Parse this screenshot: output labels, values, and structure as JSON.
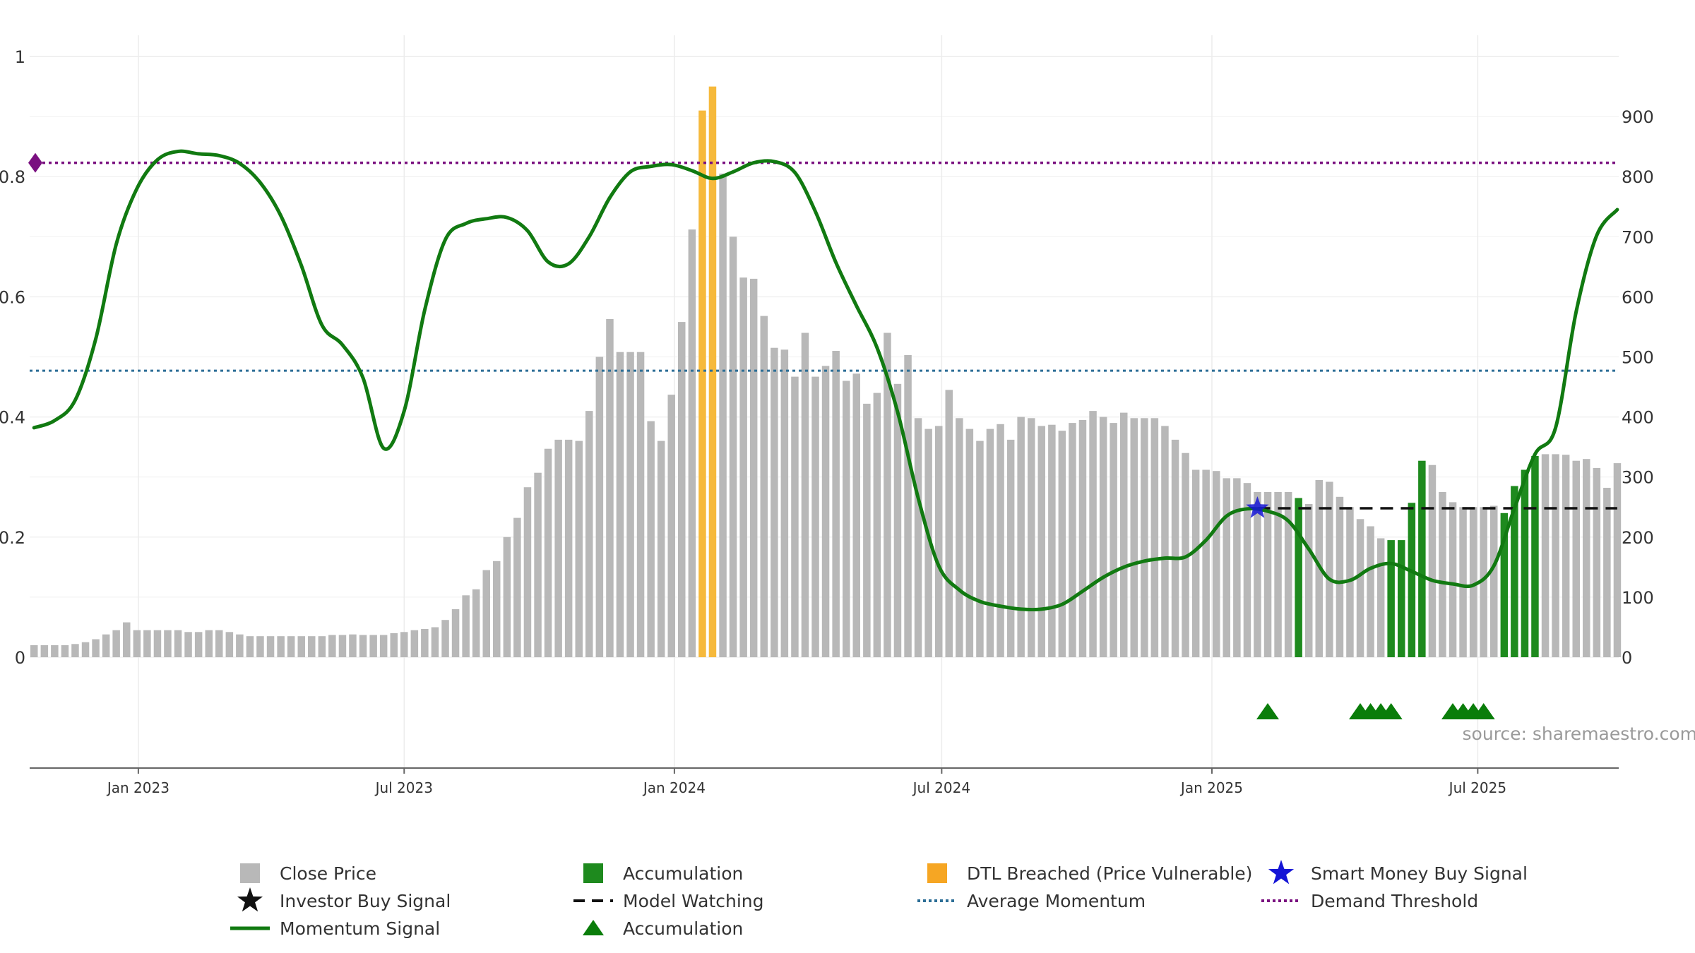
{
  "source_text": "source: sharemaestro.com",
  "chart_data": {
    "type": "bar",
    "title": "",
    "x_tick_labels": [
      "Jan 2023",
      "Jul 2023",
      "Jan 2024",
      "Jul 2024",
      "Jan 2025",
      "Jul 2025"
    ],
    "x_tick_dates": [
      "2023-01-01",
      "2023-07-01",
      "2024-01-01",
      "2024-07-01",
      "2025-01-01",
      "2025-07-01"
    ],
    "x_range": [
      "2022-10-19",
      "2025-10-05"
    ],
    "left_axis": {
      "ticks": [
        "0",
        "0.2",
        "0.4",
        "0.6",
        "0.8",
        "1"
      ],
      "ylim": [
        0,
        1
      ]
    },
    "right_axis": {
      "ticks": [
        "0",
        "100",
        "200",
        "300",
        "400",
        "500",
        "600",
        "700",
        "800",
        "900"
      ],
      "ylim": [
        0,
        1000
      ]
    },
    "gridlines": true,
    "bar_series": {
      "name": "Close Price",
      "axis": "right",
      "start_date": "2022-10-22",
      "interval_days": 7,
      "colors": {
        "normal": "#b8b8b8",
        "accumulation": "#1e8a1e",
        "dtl_breached": "#f6b93b"
      },
      "values": [
        20,
        20,
        20,
        20,
        22,
        25,
        30,
        38,
        45,
        58,
        45,
        45,
        45,
        45,
        45,
        42,
        42,
        45,
        45,
        42,
        38,
        35,
        35,
        35,
        35,
        35,
        35,
        35,
        35,
        37,
        37,
        38,
        37,
        37,
        37,
        40,
        42,
        45,
        47,
        50,
        62,
        80,
        103,
        113,
        145,
        160,
        200,
        232,
        283,
        307,
        347,
        362,
        362,
        360,
        410,
        500,
        563,
        508,
        508,
        508,
        393,
        360,
        437,
        558,
        712,
        910,
        950,
        805,
        700,
        632,
        630,
        568,
        515,
        512,
        467,
        540,
        467,
        485,
        510,
        460,
        472,
        422,
        440,
        540,
        455,
        503,
        398,
        380,
        385,
        445,
        398,
        380,
        360,
        380,
        388,
        362,
        400,
        398,
        385,
        387,
        377,
        390,
        395,
        410,
        400,
        390,
        407,
        398,
        398,
        398,
        385,
        362,
        340,
        312,
        312,
        310,
        298,
        298,
        290,
        275,
        275,
        275,
        275,
        265,
        255,
        295,
        292,
        267,
        250,
        230,
        218,
        198,
        195,
        195,
        257,
        327,
        320,
        275,
        258,
        250,
        250,
        250,
        252,
        240,
        285,
        312,
        335,
        338,
        338,
        337,
        327,
        330,
        315,
        282,
        323
      ],
      "accumulation_indices": [
        123,
        132,
        133,
        134,
        135,
        143,
        144,
        145,
        146
      ],
      "dtl_breached_indices": [
        65,
        66
      ]
    },
    "momentum_signal": {
      "name": "Momentum Signal",
      "axis": "left",
      "color": "#117a11",
      "points": [
        [
          "2022-10-22",
          0.382
        ],
        [
          "2022-11-05",
          0.394
        ],
        [
          "2022-11-19",
          0.428
        ],
        [
          "2022-12-03",
          0.53
        ],
        [
          "2022-12-17",
          0.688
        ],
        [
          "2022-12-31",
          0.78
        ],
        [
          "2023-01-14",
          0.828
        ],
        [
          "2023-01-28",
          0.842
        ],
        [
          "2023-02-11",
          0.838
        ],
        [
          "2023-02-25",
          0.835
        ],
        [
          "2023-03-11",
          0.822
        ],
        [
          "2023-03-25",
          0.79
        ],
        [
          "2023-04-08",
          0.735
        ],
        [
          "2023-04-22",
          0.652
        ],
        [
          "2023-05-06",
          0.553
        ],
        [
          "2023-05-20",
          0.52
        ],
        [
          "2023-06-03",
          0.465
        ],
        [
          "2023-06-17",
          0.348
        ],
        [
          "2023-07-01",
          0.41
        ],
        [
          "2023-07-15",
          0.578
        ],
        [
          "2023-07-29",
          0.695
        ],
        [
          "2023-08-12",
          0.722
        ],
        [
          "2023-08-26",
          0.73
        ],
        [
          "2023-09-09",
          0.732
        ],
        [
          "2023-09-23",
          0.71
        ],
        [
          "2023-10-07",
          0.658
        ],
        [
          "2023-10-21",
          0.655
        ],
        [
          "2023-11-04",
          0.7
        ],
        [
          "2023-11-18",
          0.765
        ],
        [
          "2023-12-02",
          0.808
        ],
        [
          "2023-12-16",
          0.817
        ],
        [
          "2023-12-30",
          0.82
        ],
        [
          "2024-01-13",
          0.81
        ],
        [
          "2024-01-27",
          0.797
        ],
        [
          "2024-02-10",
          0.808
        ],
        [
          "2024-02-24",
          0.823
        ],
        [
          "2024-03-09",
          0.825
        ],
        [
          "2024-03-23",
          0.807
        ],
        [
          "2024-04-06",
          0.742
        ],
        [
          "2024-04-20",
          0.657
        ],
        [
          "2024-05-04",
          0.585
        ],
        [
          "2024-05-18",
          0.515
        ],
        [
          "2024-06-01",
          0.408
        ],
        [
          "2024-06-15",
          0.265
        ],
        [
          "2024-06-29",
          0.152
        ],
        [
          "2024-07-13",
          0.112
        ],
        [
          "2024-07-27",
          0.093
        ],
        [
          "2024-08-10",
          0.085
        ],
        [
          "2024-08-24",
          0.08
        ],
        [
          "2024-09-07",
          0.08
        ],
        [
          "2024-09-21",
          0.088
        ],
        [
          "2024-10-05",
          0.11
        ],
        [
          "2024-10-19",
          0.133
        ],
        [
          "2024-11-02",
          0.15
        ],
        [
          "2024-11-16",
          0.16
        ],
        [
          "2024-11-30",
          0.165
        ],
        [
          "2024-12-14",
          0.167
        ],
        [
          "2024-12-28",
          0.195
        ],
        [
          "2025-01-11",
          0.235
        ],
        [
          "2025-01-25",
          0.247
        ],
        [
          "2025-02-08",
          0.243
        ],
        [
          "2025-02-22",
          0.227
        ],
        [
          "2025-03-08",
          0.18
        ],
        [
          "2025-03-22",
          0.13
        ],
        [
          "2025-04-05",
          0.128
        ],
        [
          "2025-04-19",
          0.148
        ],
        [
          "2025-05-03",
          0.156
        ],
        [
          "2025-05-17",
          0.143
        ],
        [
          "2025-05-31",
          0.128
        ],
        [
          "2025-06-14",
          0.122
        ],
        [
          "2025-06-28",
          0.12
        ],
        [
          "2025-07-12",
          0.152
        ],
        [
          "2025-07-26",
          0.248
        ],
        [
          "2025-08-09",
          0.338
        ],
        [
          "2025-08-23",
          0.382
        ],
        [
          "2025-09-06",
          0.575
        ],
        [
          "2025-09-20",
          0.702
        ],
        [
          "2025-10-04",
          0.745
        ]
      ]
    },
    "average_momentum": {
      "name": "Average Momentum",
      "value": 0.477,
      "color": "#2c6e96"
    },
    "demand_threshold": {
      "name": "Demand Threshold",
      "value": 0.823,
      "color": "#7a1080"
    },
    "model_watching": {
      "name": "Model Watching",
      "value": 0.248,
      "start": "2025-02-01",
      "end": "2025-10-04",
      "color": "#111111"
    },
    "smart_money_buy_signal": {
      "name": "Smart Money Buy Signal",
      "date": "2025-02-01",
      "value": 0.248,
      "color": "#1515d6"
    },
    "accumulation_markers": {
      "name": "Accumulation",
      "color": "#0a7d0a",
      "dates": [
        "2025-02-08",
        "2025-04-12",
        "2025-04-19",
        "2025-04-26",
        "2025-05-03",
        "2025-06-14",
        "2025-06-21",
        "2025-06-28",
        "2025-07-05"
      ]
    },
    "legend": {
      "position": "bottom",
      "entries": [
        {
          "label": "Close Price",
          "kind": "square",
          "color": "#b8b8b8"
        },
        {
          "label": "Accumulation",
          "kind": "square",
          "color": "#1e8a1e"
        },
        {
          "label": "DTL Breached (Price Vulnerable)",
          "kind": "square",
          "color": "#f6a623"
        },
        {
          "label": "Smart Money Buy Signal",
          "kind": "star",
          "color": "#1515d6"
        },
        {
          "label": "Investor Buy Signal",
          "kind": "star",
          "color": "#111111"
        },
        {
          "label": "Model Watching",
          "kind": "dash",
          "color": "#111111"
        },
        {
          "label": "Average Momentum",
          "kind": "dot",
          "color": "#2c6e96"
        },
        {
          "label": "Demand Threshold",
          "kind": "dot",
          "color": "#7a1080"
        },
        {
          "label": "Momentum Signal",
          "kind": "line",
          "color": "#117a11"
        },
        {
          "label": "Accumulation",
          "kind": "triangle",
          "color": "#0a7d0a"
        }
      ]
    }
  }
}
